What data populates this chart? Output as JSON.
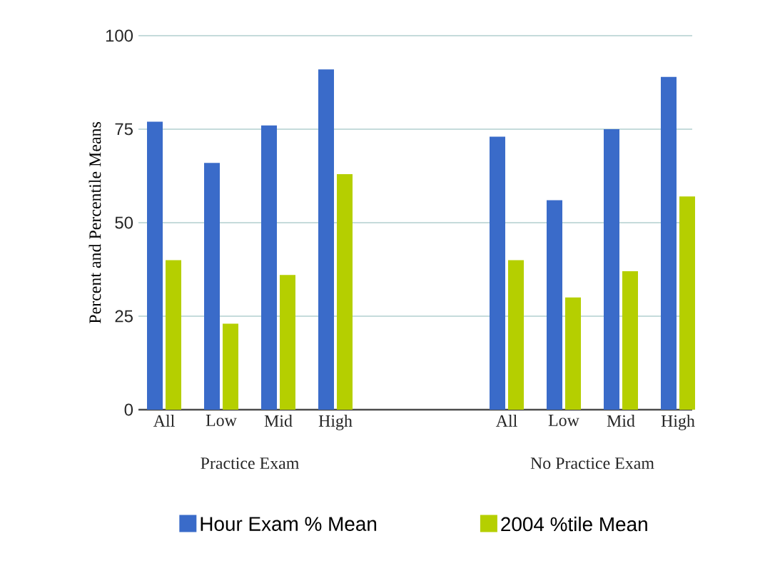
{
  "chart_data": {
    "type": "bar",
    "ylabel": "Percent and Percentile Means",
    "categories": [
      "All",
      "Low",
      "Mid",
      "High",
      null,
      null,
      "All",
      "Low",
      "Mid",
      "High"
    ],
    "series": [
      {
        "name": "Hour Exam % Mean",
        "color": "#3a6bc9",
        "values": [
          77,
          66,
          76,
          91,
          null,
          null,
          73,
          56,
          75,
          89
        ]
      },
      {
        "name": "2004 %tile Mean",
        "color": "#b5cf00",
        "values": [
          40,
          23,
          36,
          63,
          null,
          null,
          40,
          30,
          37,
          57
        ]
      }
    ],
    "annotations": [
      "Practice Exam",
      "No Practice Exam"
    ],
    "ylim": [
      0,
      100
    ],
    "yticks": [
      0,
      25,
      50,
      75,
      100
    ],
    "grid": "y",
    "legend": "bottom"
  }
}
